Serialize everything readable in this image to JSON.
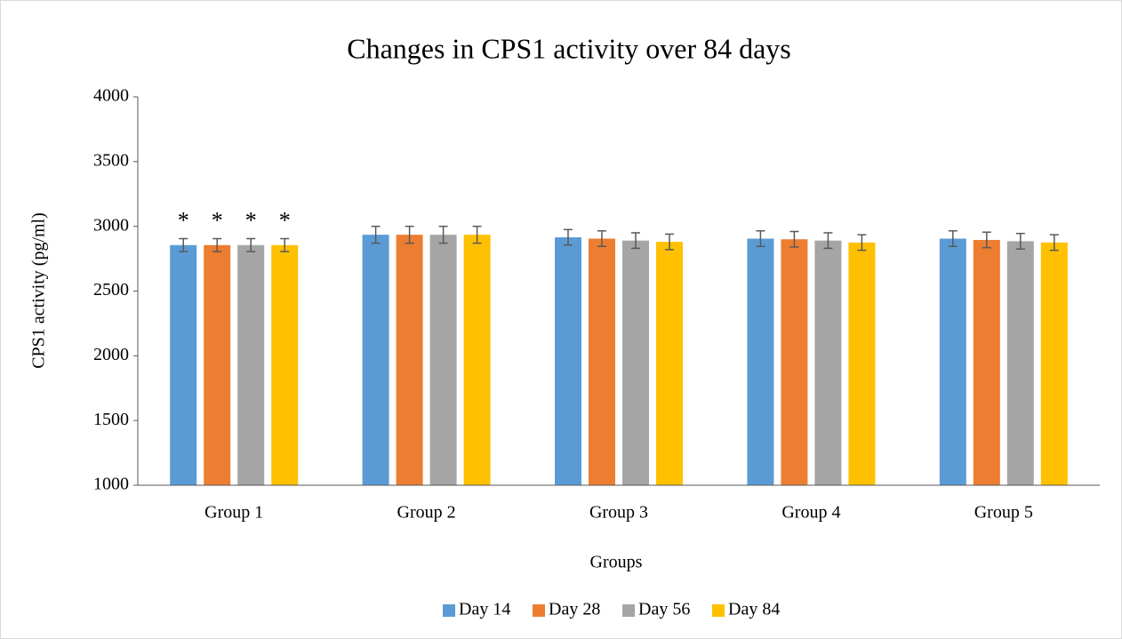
{
  "chart_data": {
    "type": "bar",
    "title": "Changes in CPS1 activity over 84 days",
    "x_label": "Groups",
    "y_label": "CPS1 activity (pg/ml)",
    "categories": [
      "Group 1",
      "Group 2",
      "Group 3",
      "Group 4",
      "Group 5"
    ],
    "series": [
      {
        "name": "Day 14",
        "color": "#5b9bd5",
        "values": [
          2855,
          2935,
          2915,
          2905,
          2905
        ],
        "errors": [
          50,
          65,
          60,
          60,
          60
        ],
        "labels": [
          "*",
          null,
          null,
          null,
          null
        ]
      },
      {
        "name": "Day 28",
        "color": "#ed7d31",
        "values": [
          2855,
          2935,
          2905,
          2900,
          2895
        ],
        "errors": [
          50,
          65,
          60,
          60,
          60
        ],
        "labels": [
          "*",
          null,
          null,
          null,
          null
        ]
      },
      {
        "name": "Day 56",
        "color": "#a5a5a5",
        "values": [
          2855,
          2935,
          2890,
          2890,
          2885
        ],
        "errors": [
          50,
          65,
          60,
          60,
          60
        ],
        "labels": [
          "*",
          null,
          null,
          null,
          null
        ]
      },
      {
        "name": "Day 84",
        "color": "#ffc000",
        "values": [
          2855,
          2935,
          2880,
          2875,
          2875
        ],
        "errors": [
          50,
          65,
          60,
          60,
          60
        ],
        "labels": [
          "*",
          null,
          null,
          null,
          null
        ]
      }
    ],
    "ylim": [
      1000,
      4000
    ],
    "yticks": [
      1000,
      1500,
      2000,
      2500,
      3000,
      3500,
      4000
    ],
    "grid": false,
    "legend": "bottom"
  }
}
